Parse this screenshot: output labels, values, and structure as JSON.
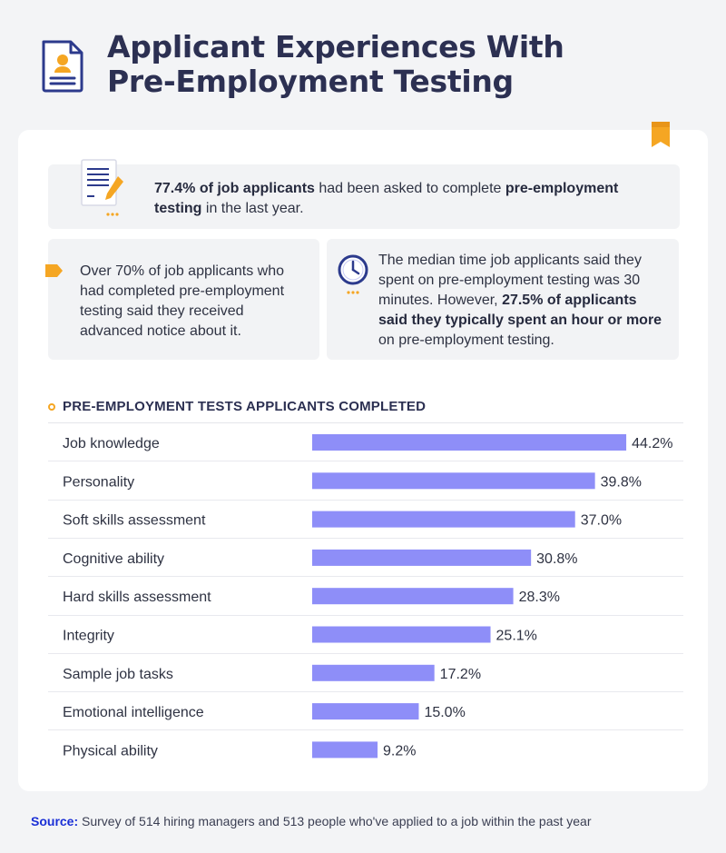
{
  "header": {
    "title_line1": "Applicant Experiences With",
    "title_line2": "Pre-Employment Testing"
  },
  "stats": {
    "top": {
      "bold1": "77.4% of job applicants",
      "text1": " had been asked to complete ",
      "bold2": "pre-employment testing",
      "text2": " in the last year."
    },
    "left": {
      "text": "Over 70% of job applicants who had completed pre-employment testing said they received advanced notice about it."
    },
    "right": {
      "text1": "The median time job applicants said they spent on pre-employment testing was 30 minutes. However, ",
      "bold1": "27.5% of applicants said they typically spent an hour or more",
      "text2": " on pre-employment testing."
    }
  },
  "colors": {
    "bar": "#8e8ef8",
    "accent": "#f5a623",
    "navy": "#2c3a8c",
    "source": "#1a2fd6"
  },
  "chart_data": {
    "type": "bar",
    "orientation": "horizontal",
    "title": "PRE-EMPLOYMENT TESTS APPLICANTS COMPLETED",
    "categories": [
      "Job knowledge",
      "Personality",
      "Soft skills assessment",
      "Cognitive ability",
      "Hard skills assessment",
      "Integrity",
      "Sample job tasks",
      "Emotional intelligence",
      "Physical ability"
    ],
    "values": [
      44.2,
      39.8,
      37.0,
      30.8,
      28.3,
      25.1,
      17.2,
      15.0,
      9.2
    ],
    "value_labels": [
      "44.2%",
      "39.8%",
      "37.0%",
      "30.8%",
      "28.3%",
      "25.1%",
      "17.2%",
      "15.0%",
      "9.2%"
    ],
    "unit": "%",
    "xlim": [
      0,
      50
    ]
  },
  "source": {
    "label": "Source:",
    "text": " Survey of 514 hiring managers and 513 people who've applied to a job within the past year"
  }
}
